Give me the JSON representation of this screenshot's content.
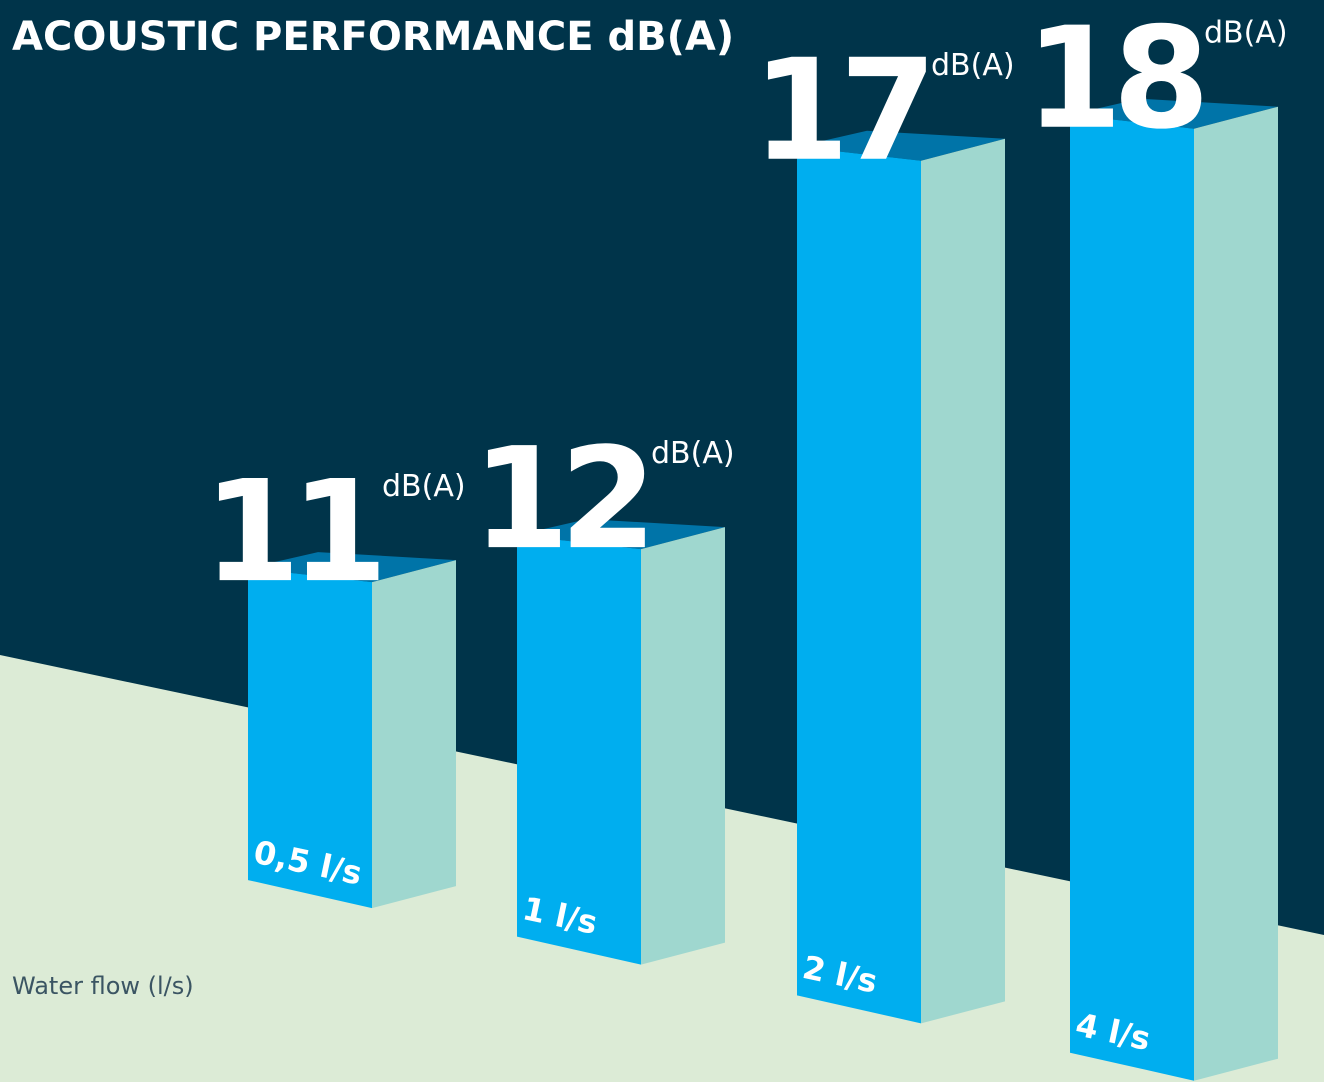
{
  "chart_data": {
    "type": "bar3d",
    "title": "ACOUSTIC PERFORMANCE dB(A)",
    "x_label": "Water flow (l/s)",
    "unit": "dB(A)",
    "categories": [
      "0,5 l/s",
      "1 l/s",
      "2 l/s",
      "4 l/s"
    ],
    "values": [
      11,
      12,
      17,
      18
    ],
    "colors": {
      "front": "#00aeef",
      "side": "#9fd7cf",
      "top": "#0074a8"
    }
  }
}
